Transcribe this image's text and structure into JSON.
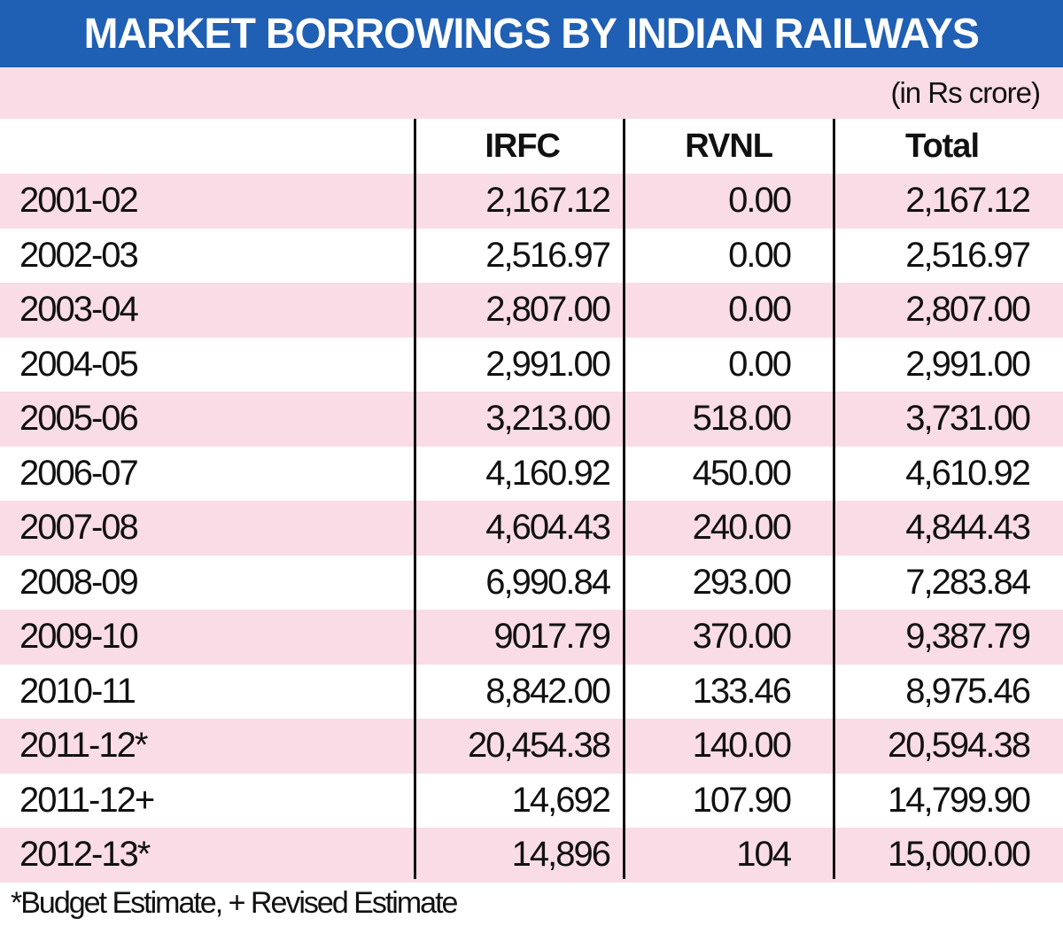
{
  "title": "MARKET BORROWINGS BY INDIAN RAILWAYS",
  "unit": "(in Rs crore)",
  "footnote": "*Budget Estimate, + Revised Estimate",
  "colors": {
    "title_bg": "#1f5fb4",
    "title_text": "#ffffff",
    "stripe": "#f9dce6"
  },
  "chart_data": {
    "type": "table",
    "title": "MARKET BORROWINGS BY INDIAN RAILWAYS",
    "columns": [
      "",
      "IRFC",
      "RVNL",
      "Total"
    ],
    "rows": [
      [
        "2001-02",
        "2,167.12",
        "0.00",
        "2,167.12"
      ],
      [
        "2002-03",
        "2,516.97",
        "0.00",
        "2,516.97"
      ],
      [
        "2003-04",
        "2,807.00",
        "0.00",
        "2,807.00"
      ],
      [
        "2004-05",
        "2,991.00",
        "0.00",
        "2,991.00"
      ],
      [
        "2005-06",
        "3,213.00",
        "518.00",
        "3,731.00"
      ],
      [
        "2006-07",
        "4,160.92",
        "450.00",
        "4,610.92"
      ],
      [
        "2007-08",
        "4,604.43",
        "240.00",
        "4,844.43"
      ],
      [
        "2008-09",
        "6,990.84",
        "293.00",
        "7,283.84"
      ],
      [
        "2009-10",
        "9017.79",
        "370.00",
        "9,387.79"
      ],
      [
        "2010-11",
        "8,842.00",
        "133.46",
        "8,975.46"
      ],
      [
        "2011-12*",
        "20,454.38",
        "140.00",
        "20,594.38"
      ],
      [
        "2011-12+",
        "14,692",
        "107.90",
        "14,799.90"
      ],
      [
        "2012-13*",
        "14,896",
        "104",
        "15,000.00"
      ]
    ]
  }
}
